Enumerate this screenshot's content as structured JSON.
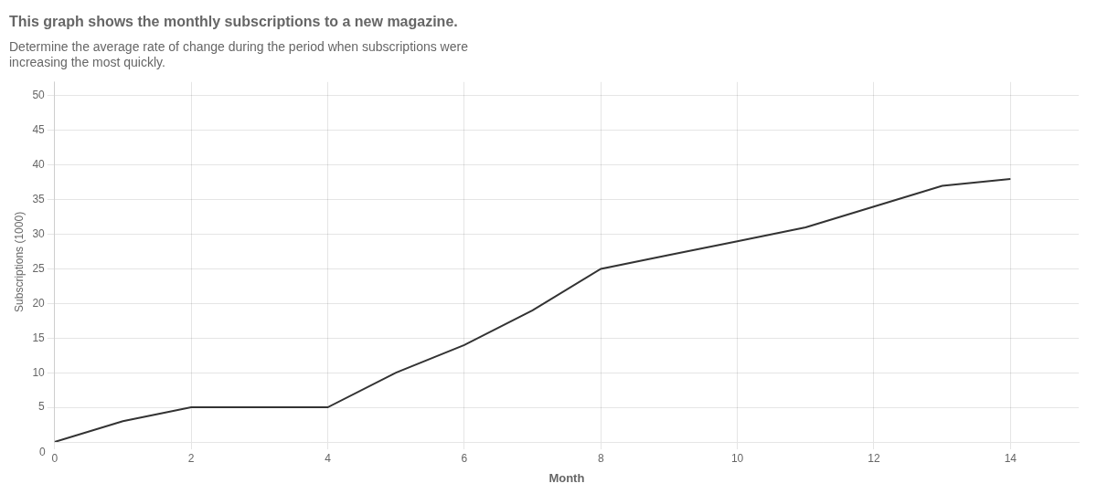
{
  "chart_data": {
    "type": "line",
    "title": "This graph shows the monthly subscriptions to a new magazine.",
    "subtitle": [
      "Determine the average rate of change during the period when subscriptions were",
      "increasing the most quickly."
    ],
    "x": [
      0,
      1,
      2,
      3,
      4,
      5,
      6,
      7,
      8,
      9,
      10,
      11,
      12,
      13,
      14
    ],
    "values": [
      0,
      3,
      5,
      5,
      5,
      10,
      14,
      19,
      25,
      27,
      29,
      31,
      34,
      37,
      38
    ],
    "color": "#333333",
    "xlabel": "Month",
    "ylabel": "Subscriptions (1000)",
    "xlim": [
      0,
      15
    ],
    "ylim": [
      0,
      52
    ],
    "xticks": [
      0,
      2,
      4,
      6,
      8,
      10,
      12,
      14
    ],
    "yticks": [
      5,
      10,
      15,
      20,
      25,
      30,
      35,
      40,
      45,
      50
    ],
    "grid": true,
    "annotations": [
      {
        "text": "0",
        "x": 0,
        "y": 0
      }
    ]
  }
}
